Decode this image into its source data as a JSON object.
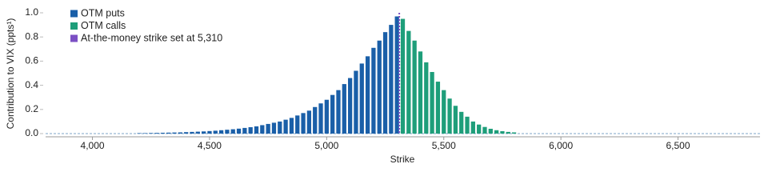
{
  "chart_data": {
    "type": "bar",
    "y_label": "Contribution to VIX (ppts¹)",
    "x_label": "Strike",
    "xlim": [
      3800,
      6850
    ],
    "ylim": [
      0,
      1.0
    ],
    "xticks": [
      {
        "value": 4000,
        "label": "4,000"
      },
      {
        "value": 4500,
        "label": "4,500"
      },
      {
        "value": 5000,
        "label": "5,000"
      },
      {
        "value": 5500,
        "label": "5,500"
      },
      {
        "value": 6000,
        "label": "6,000"
      },
      {
        "value": 6500,
        "label": "6,500"
      }
    ],
    "yticks": [
      {
        "value": 0,
        "label": "0.0"
      },
      {
        "value": 0.2,
        "label": "0.2"
      },
      {
        "value": 0.4,
        "label": "0.4"
      },
      {
        "value": 0.6,
        "label": "0.6"
      },
      {
        "value": 0.8,
        "label": "0.8"
      },
      {
        "value": 1.0,
        "label": "1.0"
      }
    ],
    "series": [
      {
        "name": "OTM puts",
        "color": "#1a5fa8",
        "x": [
          4200,
          4225,
          4250,
          4275,
          4300,
          4325,
          4350,
          4375,
          4400,
          4425,
          4450,
          4475,
          4500,
          4525,
          4550,
          4575,
          4600,
          4625,
          4650,
          4675,
          4700,
          4725,
          4750,
          4775,
          4800,
          4825,
          4850,
          4875,
          4900,
          4925,
          4950,
          4975,
          5000,
          5025,
          5050,
          5075,
          5100,
          5125,
          5150,
          5175,
          5200,
          5225,
          5250,
          5275,
          5300
        ],
        "values": [
          0.004,
          0.004,
          0.005,
          0.006,
          0.007,
          0.008,
          0.009,
          0.01,
          0.012,
          0.014,
          0.016,
          0.018,
          0.021,
          0.024,
          0.028,
          0.032,
          0.036,
          0.041,
          0.047,
          0.053,
          0.06,
          0.07,
          0.08,
          0.09,
          0.1,
          0.115,
          0.13,
          0.15,
          0.17,
          0.19,
          0.22,
          0.25,
          0.28,
          0.32,
          0.36,
          0.41,
          0.46,
          0.52,
          0.58,
          0.64,
          0.71,
          0.77,
          0.84,
          0.9,
          0.97
        ]
      },
      {
        "name": "OTM calls",
        "color": "#1e9e7a",
        "x": [
          5325,
          5350,
          5375,
          5400,
          5425,
          5450,
          5475,
          5500,
          5525,
          5550,
          5575,
          5600,
          5625,
          5650,
          5675,
          5700,
          5725,
          5750,
          5775,
          5800
        ],
        "values": [
          0.95,
          0.85,
          0.77,
          0.68,
          0.59,
          0.51,
          0.43,
          0.36,
          0.29,
          0.23,
          0.18,
          0.14,
          0.1,
          0.075,
          0.055,
          0.04,
          0.028,
          0.02,
          0.014,
          0.01
        ]
      }
    ],
    "reference_line": {
      "name": "At-the-money strike set at 5,310",
      "color": "#7b4fc4",
      "value": 5310
    }
  }
}
